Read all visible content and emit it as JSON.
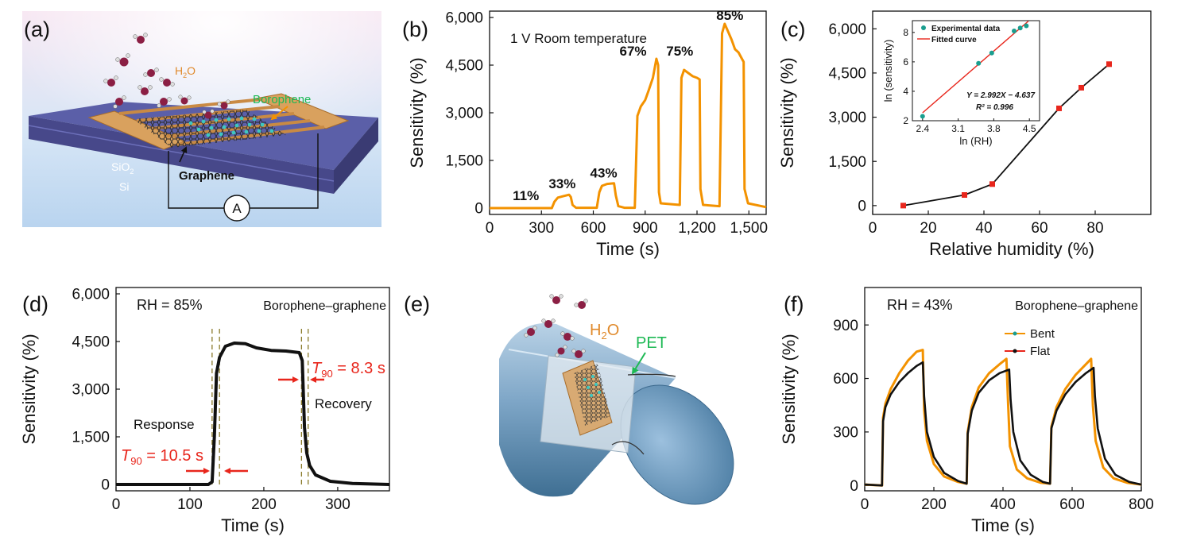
{
  "panels": {
    "a": {
      "label": "(a)",
      "texts": {
        "h2o": "H",
        "h2o_sub": "2",
        "h2o_end": "O",
        "borophene": "Borophene",
        "sio2": "SiO",
        "sio2_sub": "2",
        "si": "Si",
        "graphene": "Graphene",
        "ammeter": "A"
      }
    },
    "b": {
      "label": "(b)"
    },
    "c": {
      "label": "(c)"
    },
    "d": {
      "label": "(d)"
    },
    "e": {
      "label": "(e)",
      "texts": {
        "h2o": "H",
        "h2o_sub": "2",
        "h2o_end": "O",
        "pet": "PET"
      }
    },
    "f": {
      "label": "(f)"
    }
  },
  "colors": {
    "orange": "#f39200",
    "black": "#111111",
    "red": "#e8261c",
    "teal": "#1a9e8f",
    "green": "#1db954"
  },
  "chart_data": [
    {
      "panel": "b",
      "type": "line",
      "xlabel": "Time (s)",
      "ylabel": "Sensitivity (%)",
      "xlim": [
        0,
        1600
      ],
      "ylim": [
        -200,
        6200
      ],
      "xticks": [
        "0",
        "300",
        "600",
        "900",
        "1,200",
        "1,500"
      ],
      "xtick_values": [
        0,
        300,
        600,
        900,
        1200,
        1500
      ],
      "yticks": [
        "0",
        "1,500",
        "3,000",
        "4,500",
        "6,000"
      ],
      "ytick_values": [
        0,
        1500,
        3000,
        4500,
        6000
      ],
      "annotation": "1 V  Room temperature",
      "data_labels": [
        {
          "text": "11%",
          "x": 210,
          "y": 250
        },
        {
          "text": "33%",
          "x": 420,
          "y": 620
        },
        {
          "text": "43%",
          "x": 660,
          "y": 960
        },
        {
          "text": "67%",
          "x": 830,
          "y": 4800
        },
        {
          "text": "75%",
          "x": 1100,
          "y": 4800
        },
        {
          "text": "85%",
          "x": 1390,
          "y": 5930
        }
      ],
      "series": [
        {
          "color": "#f39200",
          "points": [
            [
              0,
              0
            ],
            [
              360,
              0
            ],
            [
              375,
              200
            ],
            [
              395,
              330
            ],
            [
              430,
              380
            ],
            [
              460,
              420
            ],
            [
              470,
              350
            ],
            [
              480,
              100
            ],
            [
              500,
              10
            ],
            [
              620,
              10
            ],
            [
              635,
              500
            ],
            [
              650,
              700
            ],
            [
              680,
              760
            ],
            [
              720,
              780
            ],
            [
              730,
              400
            ],
            [
              745,
              60
            ],
            [
              780,
              10
            ],
            [
              840,
              10
            ],
            [
              855,
              2900
            ],
            [
              875,
              3200
            ],
            [
              900,
              3400
            ],
            [
              920,
              3700
            ],
            [
              945,
              4100
            ],
            [
              965,
              4700
            ],
            [
              975,
              4500
            ],
            [
              980,
              500
            ],
            [
              990,
              150
            ],
            [
              1100,
              100
            ],
            [
              1110,
              4100
            ],
            [
              1125,
              4350
            ],
            [
              1150,
              4250
            ],
            [
              1175,
              4150
            ],
            [
              1200,
              4100
            ],
            [
              1215,
              4050
            ],
            [
              1220,
              600
            ],
            [
              1235,
              100
            ],
            [
              1330,
              60
            ],
            [
              1345,
              5500
            ],
            [
              1360,
              5800
            ],
            [
              1380,
              5550
            ],
            [
              1400,
              5300
            ],
            [
              1420,
              5000
            ],
            [
              1440,
              4900
            ],
            [
              1460,
              4700
            ],
            [
              1470,
              4600
            ],
            [
              1475,
              600
            ],
            [
              1495,
              150
            ],
            [
              1600,
              30
            ]
          ]
        }
      ]
    },
    {
      "panel": "c",
      "type": "line",
      "xlabel": "Relative humidity (%)",
      "ylabel": "Sensitivity (%)",
      "xlim": [
        0,
        100
      ],
      "ylim": [
        -300,
        6600
      ],
      "xticks": [
        "0",
        "20",
        "40",
        "60",
        "80"
      ],
      "xtick_values": [
        0,
        20,
        40,
        60,
        80
      ],
      "yticks": [
        "0",
        "1,500",
        "3,000",
        "4,500",
        "6,000"
      ],
      "ytick_values": [
        0,
        1500,
        3000,
        4500,
        6000
      ],
      "series": [
        {
          "color": "#111111",
          "marker_color": "#e8261c",
          "points": [
            [
              11,
              0
            ],
            [
              33,
              360
            ],
            [
              43,
              730
            ],
            [
              67,
              3300
            ],
            [
              75,
              4000
            ],
            [
              85,
              4800
            ]
          ]
        }
      ],
      "inset": {
        "type": "scatter",
        "xlabel": "ln (RH)",
        "ylabel": "ln (sensitivity)",
        "xlim": [
          2.2,
          4.7
        ],
        "ylim": [
          2,
          8.8
        ],
        "xticks": [
          "2.4",
          "3.1",
          "3.8",
          "4.5"
        ],
        "xtick_values": [
          2.4,
          3.1,
          3.8,
          4.5
        ],
        "yticks": [
          "2",
          "4",
          "6",
          "8"
        ],
        "ytick_values": [
          2,
          4,
          6,
          8
        ],
        "legend": [
          "Experimental data",
          "Fitted curve"
        ],
        "equation": "Y = 2.992X − 4.637",
        "r2": "R² = 0.996",
        "points": [
          [
            2.4,
            2.3
          ],
          [
            3.5,
            5.9
          ],
          [
            3.76,
            6.6
          ],
          [
            4.2,
            8.1
          ],
          [
            4.32,
            8.3
          ],
          [
            4.44,
            8.45
          ]
        ],
        "fit": [
          [
            2.4,
            2.54
          ],
          [
            4.48,
            8.77
          ]
        ],
        "point_color": "#1a9e8f",
        "fit_color": "#e8261c"
      }
    },
    {
      "panel": "d",
      "type": "line",
      "xlabel": "Time (s)",
      "ylabel": "Sensitivity (%)",
      "xlim": [
        0,
        370
      ],
      "ylim": [
        -200,
        6200
      ],
      "xticks": [
        "0",
        "100",
        "200",
        "300"
      ],
      "xtick_values": [
        0,
        100,
        200,
        300
      ],
      "yticks": [
        "0",
        "1,500",
        "3,000",
        "4,500",
        "6,000"
      ],
      "ytick_values": [
        0,
        1500,
        3000,
        4500,
        6000
      ],
      "annotations": [
        "RH = 85%",
        "Borophene–graphene",
        "Response",
        "Recovery"
      ],
      "t90_response": {
        "label": "T",
        "sub": "90",
        "value": " = 10.5 s"
      },
      "t90_recovery": {
        "label": "T",
        "sub": "90",
        "value": " = 8.3 s"
      },
      "dashed_lines_x": [
        130,
        140,
        251,
        260
      ],
      "series": [
        {
          "color": "#111111",
          "points": [
            [
              0,
              0
            ],
            [
              125,
              0
            ],
            [
              130,
              80
            ],
            [
              133,
              1500
            ],
            [
              136,
              3500
            ],
            [
              140,
              4000
            ],
            [
              148,
              4350
            ],
            [
              160,
              4450
            ],
            [
              175,
              4430
            ],
            [
              190,
              4300
            ],
            [
              210,
              4220
            ],
            [
              230,
              4200
            ],
            [
              248,
              4150
            ],
            [
              252,
              3900
            ],
            [
              255,
              1800
            ],
            [
              258,
              1000
            ],
            [
              262,
              600
            ],
            [
              270,
              300
            ],
            [
              290,
              100
            ],
            [
              320,
              30
            ],
            [
              370,
              0
            ]
          ]
        }
      ]
    },
    {
      "panel": "f",
      "type": "line",
      "xlabel": "Time (s)",
      "ylabel": "Sensitivity (%)",
      "xlim": [
        0,
        800
      ],
      "ylim": [
        -30,
        1110
      ],
      "xticks": [
        "0",
        "200",
        "400",
        "600",
        "800"
      ],
      "xtick_values": [
        0,
        200,
        400,
        600,
        800
      ],
      "yticks": [
        "0",
        "300",
        "600",
        "900"
      ],
      "ytick_values": [
        0,
        300,
        600,
        900
      ],
      "annotations": [
        "RH = 43%",
        "Borophene–graphene"
      ],
      "legend": [
        "Bent",
        "Flat"
      ],
      "series": [
        {
          "name": "Bent",
          "color": "#f39200",
          "points": [
            [
              0,
              5
            ],
            [
              50,
              0
            ],
            [
              53,
              380
            ],
            [
              60,
              460
            ],
            [
              75,
              540
            ],
            [
              100,
              630
            ],
            [
              125,
              700
            ],
            [
              150,
              750
            ],
            [
              168,
              760
            ],
            [
              172,
              420
            ],
            [
              180,
              250
            ],
            [
              200,
              120
            ],
            [
              230,
              50
            ],
            [
              270,
              20
            ],
            [
              295,
              10
            ],
            [
              298,
              300
            ],
            [
              310,
              440
            ],
            [
              330,
              550
            ],
            [
              360,
              630
            ],
            [
              390,
              680
            ],
            [
              410,
              710
            ],
            [
              415,
              450
            ],
            [
              420,
              220
            ],
            [
              440,
              90
            ],
            [
              470,
              40
            ],
            [
              510,
              15
            ],
            [
              536,
              10
            ],
            [
              540,
              330
            ],
            [
              555,
              440
            ],
            [
              580,
              540
            ],
            [
              610,
              620
            ],
            [
              640,
              680
            ],
            [
              655,
              710
            ],
            [
              660,
              450
            ],
            [
              668,
              250
            ],
            [
              690,
              100
            ],
            [
              720,
              40
            ],
            [
              760,
              15
            ],
            [
              800,
              5
            ]
          ]
        },
        {
          "name": "Flat",
          "color": "#111111",
          "points": [
            [
              0,
              5
            ],
            [
              50,
              0
            ],
            [
              53,
              360
            ],
            [
              60,
              440
            ],
            [
              75,
              510
            ],
            [
              100,
              580
            ],
            [
              125,
              630
            ],
            [
              150,
              670
            ],
            [
              168,
              690
            ],
            [
              172,
              500
            ],
            [
              180,
              300
            ],
            [
              200,
              160
            ],
            [
              230,
              70
            ],
            [
              270,
              25
            ],
            [
              295,
              10
            ],
            [
              298,
              290
            ],
            [
              310,
              420
            ],
            [
              330,
              520
            ],
            [
              360,
              590
            ],
            [
              390,
              630
            ],
            [
              418,
              650
            ],
            [
              422,
              480
            ],
            [
              430,
              300
            ],
            [
              450,
              140
            ],
            [
              480,
              60
            ],
            [
              515,
              20
            ],
            [
              536,
              10
            ],
            [
              540,
              320
            ],
            [
              555,
              420
            ],
            [
              580,
              510
            ],
            [
              610,
              580
            ],
            [
              640,
              630
            ],
            [
              662,
              660
            ],
            [
              666,
              500
            ],
            [
              674,
              320
            ],
            [
              695,
              150
            ],
            [
              725,
              60
            ],
            [
              765,
              20
            ],
            [
              800,
              5
            ]
          ]
        }
      ]
    }
  ]
}
